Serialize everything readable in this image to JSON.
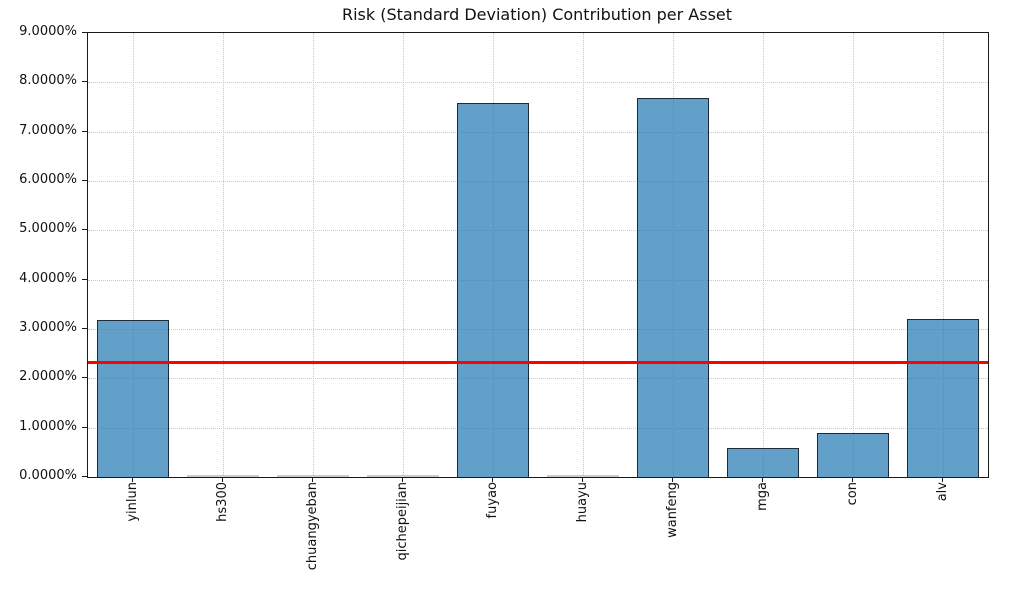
{
  "chart_data": {
    "type": "bar",
    "title": "Risk (Standard Deviation) Contribution per Asset",
    "categories": [
      "yinlun",
      "hs300",
      "chuangyeban",
      "qichepeijian",
      "fuyao",
      "huayu",
      "wanfeng",
      "mga",
      "con",
      "alv"
    ],
    "values": [
      3.18,
      0.0,
      0.0,
      0.0,
      7.58,
      0.0,
      7.68,
      0.59,
      0.9,
      3.21
    ],
    "value_unit": "%",
    "xlabel": "",
    "ylabel": "",
    "ylim": [
      0,
      9
    ],
    "ytick_step": 1,
    "ytick_labels": [
      "0.0000%",
      "1.0000%",
      "2.0000%",
      "3.0000%",
      "4.0000%",
      "5.0000%",
      "6.0000%",
      "7.0000%",
      "8.0000%",
      "9.0000%"
    ],
    "grid": "dotted",
    "legend": "none",
    "reference_line": {
      "value": 2.32,
      "color": "#ff0000"
    },
    "bar_fill_color": "#62a0cb",
    "bar_edge_color": "#2b2f3a",
    "tiny_bar_color": "#cccccc"
  }
}
